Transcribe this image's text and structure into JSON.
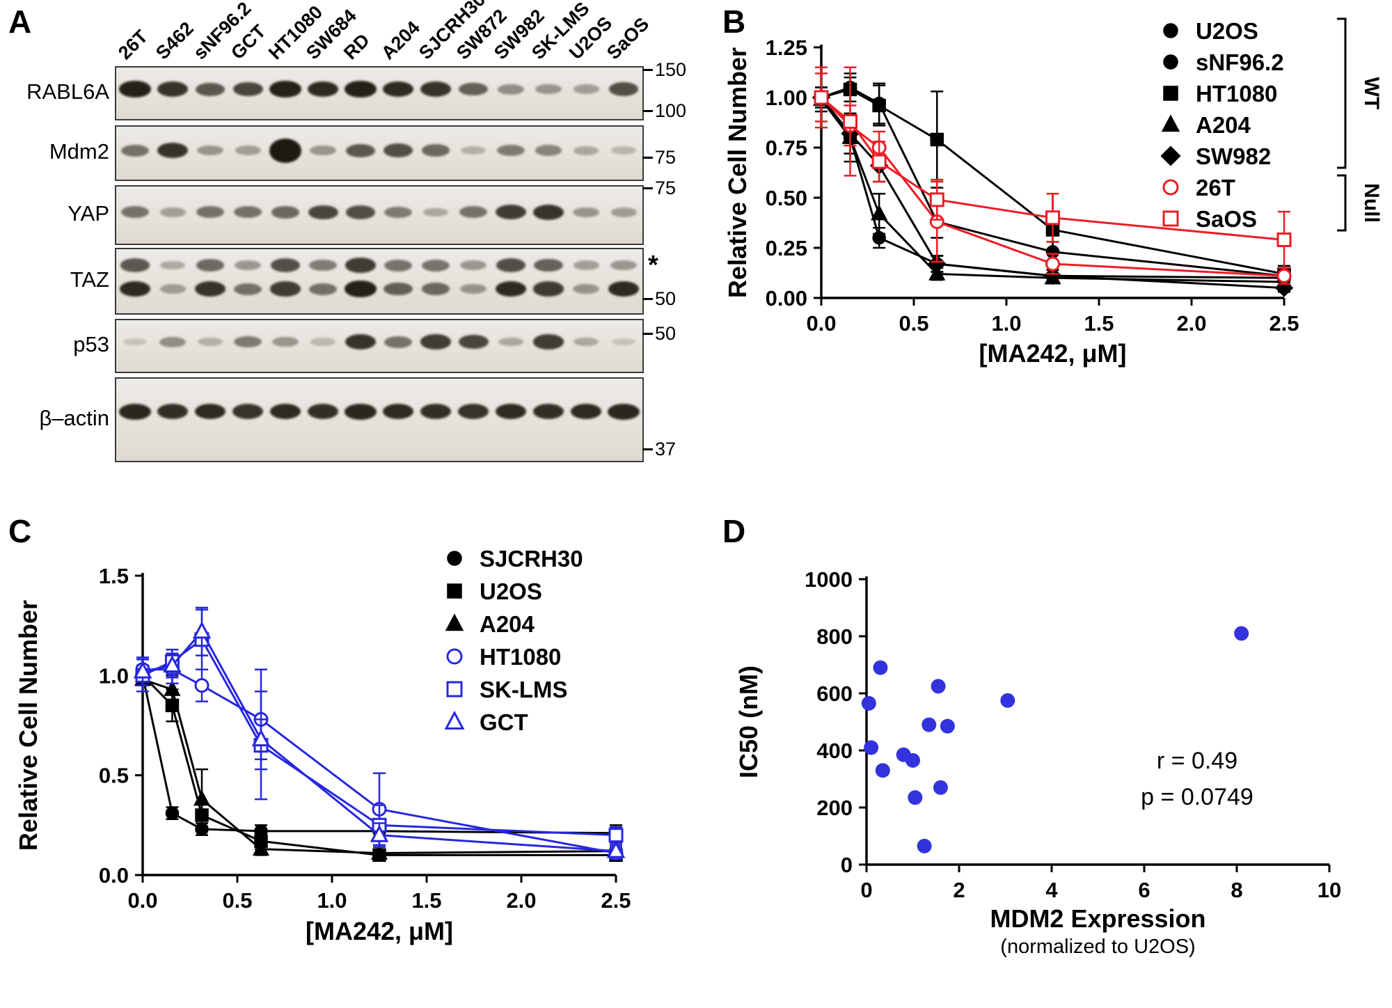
{
  "panels": {
    "a": {
      "letter": "A"
    },
    "b": {
      "letter": "B"
    },
    "c": {
      "letter": "C"
    },
    "d": {
      "letter": "D"
    }
  },
  "panel_a": {
    "lane_labels": [
      "26T",
      "S462",
      "sNF96.2",
      "GCT",
      "HT1080",
      "SW684",
      "RD",
      "A204",
      "SJCRH30",
      "SW872",
      "SW982",
      "SK-LMS",
      "U2OS",
      "SaOS"
    ],
    "blots": [
      {
        "label": "RABL6A",
        "markers": [
          {
            "text": "150",
            "y": 0.08
          },
          {
            "text": "100",
            "y": 0.88
          }
        ],
        "rows": [
          {
            "y": 0.42,
            "values": [
              0.95,
              0.85,
              0.65,
              0.75,
              0.95,
              0.9,
              0.95,
              0.9,
              0.85,
              0.6,
              0.35,
              0.3,
              0.25,
              0.7
            ]
          }
        ]
      },
      {
        "label": "Mdm2",
        "markers": [
          {
            "text": "75",
            "y": 0.62
          }
        ],
        "rows": [
          {
            "y": 0.45,
            "values": [
              0.5,
              0.85,
              0.3,
              0.25,
              1.8,
              0.3,
              0.65,
              0.7,
              0.55,
              0.15,
              0.45,
              0.4,
              0.2,
              0.12
            ]
          }
        ]
      },
      {
        "label": "YAP",
        "markers": [
          {
            "text": "75",
            "y": 0.06
          }
        ],
        "rows": [
          {
            "y": 0.45,
            "values": [
              0.5,
              0.25,
              0.5,
              0.5,
              0.55,
              0.75,
              0.7,
              0.45,
              0.2,
              0.5,
              0.8,
              0.85,
              0.3,
              0.25
            ]
          }
        ]
      },
      {
        "label": "TAZ",
        "markers": [
          {
            "text": "50",
            "y": 0.8
          }
        ],
        "asterisk": "*",
        "rows": [
          {
            "y": 0.25,
            "values": [
              0.65,
              0.2,
              0.55,
              0.3,
              0.7,
              0.45,
              0.8,
              0.5,
              0.5,
              0.3,
              0.7,
              0.6,
              0.25,
              0.3
            ]
          },
          {
            "y": 0.62,
            "values": [
              0.9,
              0.25,
              0.85,
              0.5,
              0.8,
              0.5,
              0.95,
              0.6,
              0.55,
              0.3,
              0.9,
              0.8,
              0.3,
              0.9
            ]
          }
        ]
      },
      {
        "label": "p53",
        "markers": [
          {
            "text": "50",
            "y": 0.3
          }
        ],
        "rows": [
          {
            "y": 0.42,
            "values": [
              0.05,
              0.35,
              0.15,
              0.45,
              0.3,
              0.1,
              0.85,
              0.5,
              0.8,
              0.75,
              0.2,
              0.8,
              0.2,
              0.05
            ]
          }
        ]
      },
      {
        "label": "β–actin",
        "markers": [
          {
            "text": "37",
            "y": 0.88
          }
        ],
        "rows": [
          {
            "y": 0.4,
            "values": [
              0.92,
              0.88,
              0.9,
              0.85,
              0.9,
              0.88,
              0.92,
              0.9,
              0.88,
              0.85,
              0.9,
              0.88,
              0.9,
              0.92
            ]
          }
        ]
      }
    ]
  },
  "chart_data": [
    {
      "id": "panel_b",
      "type": "line",
      "xlabel": "[MA242, μM]",
      "ylabel": "Relative Cell Number",
      "xlim": [
        0,
        2.5
      ],
      "ylim": [
        0,
        1.25
      ],
      "xticks": {
        "values": [
          0,
          0.5,
          1,
          1.5,
          2,
          2.5
        ],
        "labels": [
          "0.0",
          "0.5",
          "1.0",
          "1.5",
          "2.0",
          "2.5"
        ]
      },
      "yticks": {
        "values": [
          0,
          0.25,
          0.5,
          0.75,
          1,
          1.25
        ],
        "labels": [
          "0.00",
          "0.25",
          "0.50",
          "0.75",
          "1.00",
          "1.25"
        ]
      },
      "x": [
        0,
        0.156,
        0.3125,
        0.625,
        1.25,
        2.5
      ],
      "series": [
        {
          "name": "U2OS",
          "color": "#000000",
          "marker": "circle",
          "filled": true,
          "values": [
            1.0,
            0.8,
            0.3,
            0.17,
            0.11,
            0.1
          ],
          "err": [
            0.05,
            0.08,
            0.05,
            0.04,
            0.03,
            0.03
          ]
        },
        {
          "name": "sNF96.2",
          "color": "#000000",
          "marker": "circle",
          "filled": true,
          "values": [
            1.0,
            1.05,
            0.97,
            0.38,
            0.23,
            0.11
          ],
          "err": [
            0.05,
            0.07,
            0.1,
            0.08,
            0.05,
            0.03
          ]
        },
        {
          "name": "HT1080",
          "color": "#000000",
          "marker": "square",
          "filled": true,
          "values": [
            1.0,
            1.04,
            0.96,
            0.79,
            0.34,
            0.12
          ],
          "err": [
            0.05,
            0.06,
            0.1,
            0.24,
            0.18,
            0.04
          ]
        },
        {
          "name": "A204",
          "color": "#000000",
          "marker": "triangle",
          "filled": true,
          "values": [
            0.99,
            0.8,
            0.42,
            0.12,
            0.1,
            0.08
          ],
          "err": [
            0.06,
            0.12,
            0.1,
            0.03,
            0.02,
            0.02
          ]
        },
        {
          "name": "SW982",
          "color": "#000000",
          "marker": "diamond",
          "filled": true,
          "values": [
            1.0,
            0.82,
            0.66,
            0.17,
            0.11,
            0.05
          ],
          "err": [
            0.05,
            0.1,
            0.08,
            0.04,
            0.03,
            0.02
          ]
        },
        {
          "name": "26T",
          "color": "#ec1c24",
          "marker": "circle",
          "filled": false,
          "values": [
            1.0,
            0.86,
            0.75,
            0.38,
            0.17,
            0.11
          ],
          "err": [
            0.15,
            0.1,
            0.08,
            0.2,
            0.05,
            0.04
          ]
        },
        {
          "name": "SaOS",
          "color": "#ec1c24",
          "marker": "square",
          "filled": false,
          "values": [
            1.0,
            0.88,
            0.68,
            0.49,
            0.4,
            0.29
          ],
          "err": [
            0.12,
            0.27,
            0.1,
            0.1,
            0.12,
            0.14
          ]
        }
      ],
      "legend_groups": [
        {
          "label": "WT",
          "from": 0,
          "to": 4
        },
        {
          "label": "Null",
          "from": 5,
          "to": 6
        }
      ]
    },
    {
      "id": "panel_c",
      "type": "line",
      "xlabel": "[MA242, μM]",
      "ylabel": "Relative Cell Number",
      "xlim": [
        0,
        2.5
      ],
      "ylim": [
        0,
        1.5
      ],
      "xticks": {
        "values": [
          0,
          0.5,
          1,
          1.5,
          2,
          2.5
        ],
        "labels": [
          "0.0",
          "0.5",
          "1.0",
          "1.5",
          "2.0",
          "2.5"
        ]
      },
      "yticks": {
        "values": [
          0,
          0.5,
          1,
          1.5
        ],
        "labels": [
          "0.0",
          "0.5",
          "1.0",
          "1.5"
        ]
      },
      "x": [
        0,
        0.156,
        0.3125,
        0.625,
        1.25,
        2.5
      ],
      "series": [
        {
          "name": "SJCRH30",
          "color": "#000000",
          "marker": "circle",
          "filled": true,
          "values": [
            1.0,
            0.31,
            0.23,
            0.22,
            0.22,
            0.21
          ],
          "err": [
            0.05,
            0.03,
            0.03,
            0.03,
            0.03,
            0.04
          ]
        },
        {
          "name": "U2OS",
          "color": "#000000",
          "marker": "square",
          "filled": true,
          "values": [
            1.0,
            0.85,
            0.3,
            0.17,
            0.1,
            0.1
          ],
          "err": [
            0.05,
            0.08,
            0.06,
            0.04,
            0.02,
            0.02
          ]
        },
        {
          "name": "A204",
          "color": "#000000",
          "marker": "triangle",
          "filled": true,
          "values": [
            0.98,
            0.93,
            0.38,
            0.13,
            0.11,
            0.12
          ],
          "err": [
            0.06,
            0.07,
            0.15,
            0.03,
            0.02,
            0.03
          ]
        },
        {
          "name": "HT1080",
          "color": "#2727de",
          "marker": "circle",
          "filled": false,
          "values": [
            1.03,
            1.03,
            0.95,
            0.78,
            0.33,
            0.11
          ],
          "err": [
            0.06,
            0.07,
            0.08,
            0.25,
            0.18,
            0.03
          ]
        },
        {
          "name": "SK-LMS",
          "color": "#2727de",
          "marker": "square",
          "filled": false,
          "values": [
            1.0,
            1.07,
            1.18,
            0.65,
            0.25,
            0.2
          ],
          "err": [
            0.08,
            0.06,
            0.15,
            0.27,
            0.1,
            0.04
          ]
        },
        {
          "name": "GCT",
          "color": "#2727de",
          "marker": "triangle",
          "filled": false,
          "values": [
            1.02,
            1.05,
            1.22,
            0.68,
            0.2,
            0.12
          ],
          "err": [
            0.07,
            0.06,
            0.12,
            0.1,
            0.06,
            0.03
          ]
        }
      ]
    },
    {
      "id": "panel_d",
      "type": "scatter",
      "xlabel": "MDM2 Expression",
      "xlabel_sub": "(normalized to U2OS)",
      "ylabel": "IC50 (nM)",
      "xlim": [
        0,
        10
      ],
      "ylim": [
        0,
        1000
      ],
      "xticks": {
        "values": [
          0,
          2,
          4,
          6,
          8,
          10
        ],
        "labels": [
          "0",
          "2",
          "4",
          "6",
          "8",
          "10"
        ]
      },
      "yticks": {
        "values": [
          0,
          200,
          400,
          600,
          800,
          1000
        ],
        "labels": [
          "0",
          "200",
          "400",
          "600",
          "800",
          "1000"
        ]
      },
      "point_color": "#3333dd",
      "points": [
        [
          0.05,
          565
        ],
        [
          0.1,
          410
        ],
        [
          0.3,
          690
        ],
        [
          0.35,
          330
        ],
        [
          0.8,
          385
        ],
        [
          1.0,
          365
        ],
        [
          1.05,
          235
        ],
        [
          1.25,
          65
        ],
        [
          1.35,
          490
        ],
        [
          1.55,
          625
        ],
        [
          1.6,
          270
        ],
        [
          1.75,
          485
        ],
        [
          3.05,
          575
        ],
        [
          8.1,
          810
        ]
      ],
      "annotations": [
        "r = 0.49",
        "p = 0.0749"
      ]
    }
  ]
}
